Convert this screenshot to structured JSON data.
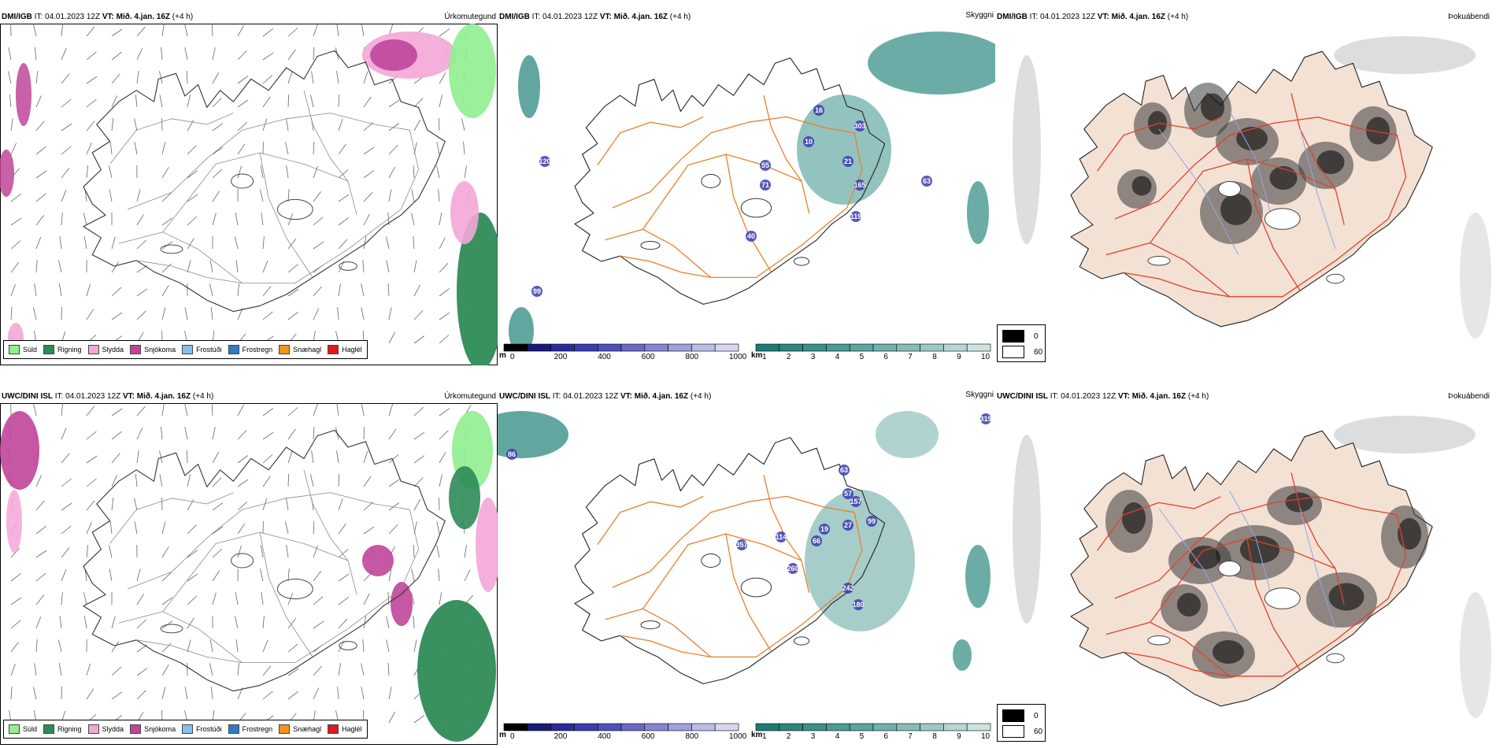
{
  "rows": [
    {
      "model": "DMI/IGB",
      "it_label": "IT:",
      "it_value": "04.01.2023 12Z",
      "vt_label": "VT:",
      "vt_value": "Mið. 4.jan. 16Z",
      "lead": "(+4 h)"
    },
    {
      "model": "UWC/DINI ISL",
      "it_label": "IT:",
      "it_value": "04.01.2023 12Z",
      "vt_label": "VT:",
      "vt_value": "Mið. 4.jan. 16Z",
      "lead": "(+4 h)"
    }
  ],
  "panel_titles": {
    "precip": "Úrkomutegund",
    "ceiling": "Skyggni",
    "fog": "Þokuábendi"
  },
  "precip_legend": [
    {
      "label": "Súld",
      "color": "#90ee90"
    },
    {
      "label": "Rigning",
      "color": "#2e8b57"
    },
    {
      "label": "Slydda",
      "color": "#f4a6d7"
    },
    {
      "label": "Snjókoma",
      "color": "#c0459a"
    },
    {
      "label": "Frostúði",
      "color": "#87bff0"
    },
    {
      "label": "Frostregn",
      "color": "#2f7bc4"
    },
    {
      "label": "Snæhagl",
      "color": "#f2941d"
    },
    {
      "label": "Haglél",
      "color": "#e01a1a"
    }
  ],
  "ceiling_scale": {
    "unit": "m",
    "ticks": [
      "0",
      "200",
      "400",
      "600",
      "800",
      "1000"
    ],
    "colors": [
      "#000000",
      "#1a1a7a",
      "#2a2a99",
      "#3c3cb0",
      "#5050b8",
      "#6a6ac4",
      "#8686d0",
      "#a0a0dc",
      "#bcbce6",
      "#d6d6f0"
    ]
  },
  "visibility_scale": {
    "unit": "km",
    "ticks": [
      "1",
      "2",
      "3",
      "4",
      "5",
      "6",
      "7",
      "8",
      "9",
      "10"
    ],
    "colors": [
      "#1f7a73",
      "#2e857e",
      "#3d9089",
      "#4c9b94",
      "#5ca69f",
      "#70b1ab",
      "#86bdb7",
      "#9dc9c4",
      "#b5d6d2",
      "#cde3e0"
    ]
  },
  "fog_legend": {
    "top_value": "0",
    "bottom_value": "60",
    "top_color": "#000000",
    "bottom_color": "#ffffff"
  },
  "ceiling_labels_top": [
    "303",
    "10",
    "55",
    "21",
    "165",
    "119",
    "16",
    "71",
    "40",
    "120",
    "99",
    "63"
  ],
  "ceiling_labels_bottom": [
    "319",
    "86",
    "63",
    "57",
    "157",
    "27",
    "66",
    "357",
    "114",
    "260",
    "242",
    "180",
    "19",
    "99"
  ],
  "colors": {
    "land_fog": "#f3e1d4",
    "road_orange": "#e8812e",
    "road_red": "#e0412b",
    "river_blue": "#8fa8e8",
    "coast": "#222222",
    "teal": "#3a9188",
    "snow": "#c0459a",
    "sleet": "#f4a6d7",
    "rain": "#2e8b57",
    "drizzle": "#90ee90"
  }
}
